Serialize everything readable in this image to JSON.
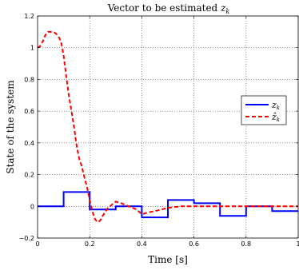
{
  "chart_data": {
    "type": "line",
    "title": "Vector to be estimated z_k",
    "title_prefix": "Vector to be estimated ",
    "title_var": "z",
    "title_sub": "k",
    "xlabel": "Time [s]",
    "ylabel": "State of the system",
    "xlim": [
      0,
      1
    ],
    "ylim": [
      -0.2,
      1.2
    ],
    "xticks": [
      0,
      0.2,
      0.4,
      0.6,
      0.8,
      1
    ],
    "xtick_labels": [
      "0",
      "0.2",
      "0.4",
      "0.6",
      "0.8",
      "1"
    ],
    "yticks": [
      -0.2,
      0,
      0.2,
      0.4,
      0.6,
      0.8,
      1,
      1.2
    ],
    "ytick_labels": [
      "−0.2",
      "0",
      "0.2",
      "0.4",
      "0.6",
      "0.8",
      "1",
      "1.2"
    ],
    "grid": true,
    "legend_position": "right",
    "series": [
      {
        "name": "z_k",
        "legend_var": "z",
        "legend_sub": "k",
        "style": "solid-step",
        "color": "#0000ff",
        "x": [
          0,
          0.1,
          0.2,
          0.3,
          0.4,
          0.5,
          0.6,
          0.7,
          0.8,
          0.9,
          1.0
        ],
        "y": [
          0.0,
          0.09,
          -0.02,
          0.0,
          -0.07,
          0.04,
          0.02,
          -0.06,
          0.0,
          -0.03,
          -0.03
        ]
      },
      {
        "name": "ẑ_k",
        "legend_var": "ẑ",
        "legend_sub": "k",
        "style": "dashed",
        "color": "#ff0000",
        "x": [
          0,
          0.01,
          0.02,
          0.03,
          0.04,
          0.05,
          0.06,
          0.07,
          0.08,
          0.09,
          0.1,
          0.11,
          0.12,
          0.13,
          0.14,
          0.15,
          0.16,
          0.17,
          0.18,
          0.19,
          0.2,
          0.21,
          0.22,
          0.23,
          0.24,
          0.25,
          0.27,
          0.3,
          0.32,
          0.35,
          0.38,
          0.4,
          0.42,
          0.45,
          0.5,
          0.55,
          0.6,
          0.7,
          0.8,
          0.9,
          1.0
        ],
        "y": [
          1.0,
          1.01,
          1.04,
          1.08,
          1.1,
          1.1,
          1.1,
          1.09,
          1.07,
          1.04,
          0.95,
          0.82,
          0.7,
          0.6,
          0.5,
          0.38,
          0.3,
          0.25,
          0.18,
          0.12,
          0.04,
          -0.03,
          -0.08,
          -0.1,
          -0.09,
          -0.06,
          -0.01,
          0.03,
          0.02,
          0.0,
          -0.02,
          -0.05,
          -0.04,
          -0.03,
          -0.01,
          0.0,
          0.0,
          0.0,
          0.0,
          0.0,
          0.0
        ]
      }
    ]
  }
}
